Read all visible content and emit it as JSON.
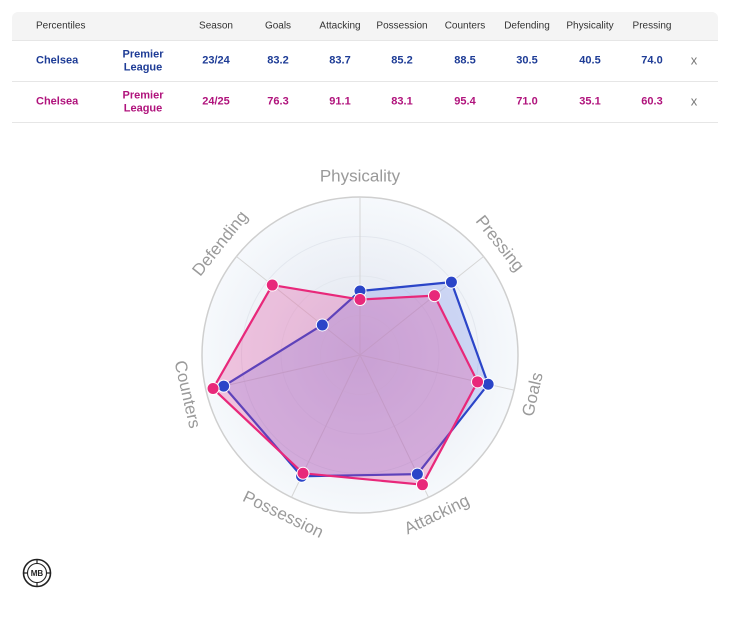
{
  "table": {
    "headers": {
      "percentiles": "Percentiles",
      "season": "Season",
      "goals": "Goals",
      "attacking": "Attacking",
      "possession": "Possession",
      "counters": "Counters",
      "defending": "Defending",
      "physicality": "Physicality",
      "pressing": "Pressing"
    },
    "rows": [
      {
        "team": "Chelsea",
        "league_line1": "Premier",
        "league_line2": "League",
        "season": "23/24",
        "goals": "83.2",
        "attacking": "83.7",
        "possession": "85.2",
        "counters": "88.5",
        "defending": "30.5",
        "physicality": "40.5",
        "pressing": "74.0",
        "remove": "x"
      },
      {
        "team": "Chelsea",
        "league_line1": "Premier",
        "league_line2": "League",
        "season": "24/25",
        "goals": "76.3",
        "attacking": "91.1",
        "possession": "83.1",
        "counters": "95.4",
        "defending": "71.0",
        "physicality": "35.1",
        "pressing": "60.3",
        "remove": "x"
      }
    ]
  },
  "chart_data": {
    "type": "radar",
    "axes": [
      "Physicality",
      "Pressing",
      "Goals",
      "Attacking",
      "Possession",
      "Counters",
      "Defending"
    ],
    "range": [
      0,
      100
    ],
    "series": [
      {
        "name": "Chelsea 23/24",
        "color": "#2b45c8",
        "values": [
          40.5,
          74.0,
          83.2,
          83.7,
          85.2,
          88.5,
          30.5
        ]
      },
      {
        "name": "Chelsea 24/25",
        "color": "#e8287a",
        "values": [
          35.1,
          60.3,
          76.3,
          91.1,
          83.1,
          95.4,
          71.0
        ]
      }
    ]
  },
  "colors": {
    "blue": "#1e3c96",
    "pink": "#b0137c"
  },
  "logo": {
    "text": "MB"
  }
}
